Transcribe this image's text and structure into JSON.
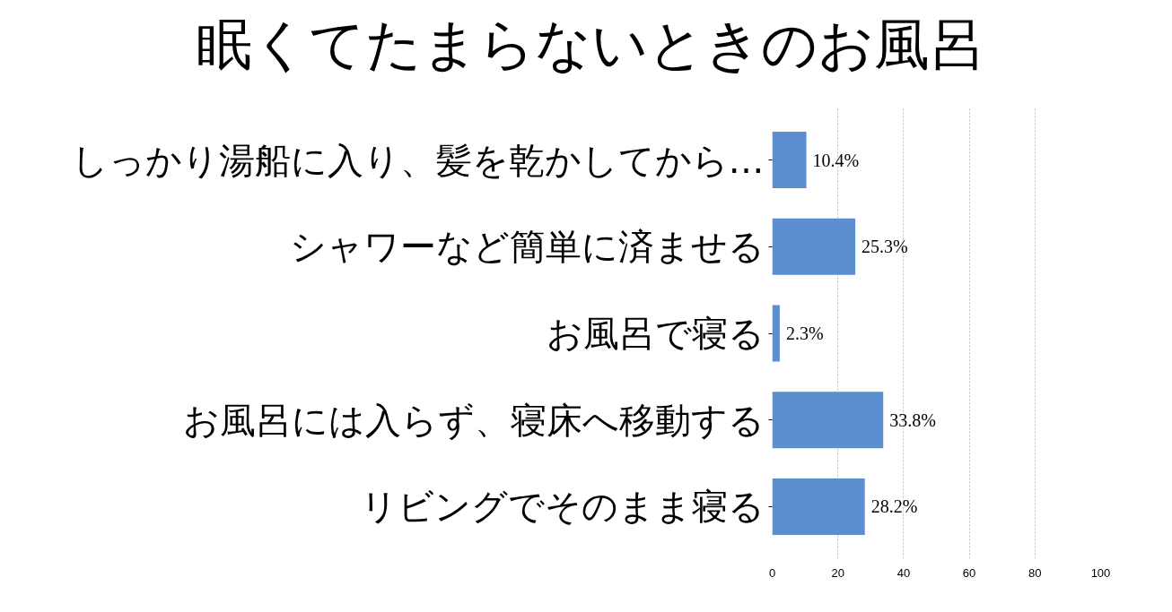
{
  "chart_data": {
    "type": "bar",
    "orientation": "horizontal",
    "title": "眠くてたまらないときのお風呂",
    "categories": [
      "しっかり湯船に入り、髪を乾かしてから…",
      "シャワーなど簡単に済ませる",
      "お風呂で寝る",
      "お風呂には入らず、寝床へ移動する",
      "リビングでそのまま寝る"
    ],
    "values": [
      10.4,
      25.3,
      2.3,
      33.8,
      28.2
    ],
    "value_labels": [
      "10.4%",
      "25.3%",
      "2.3%",
      "33.8%",
      "28.2%"
    ],
    "color": "#5b8fd0",
    "xlim": [
      0,
      100
    ],
    "xticks": [
      0,
      20,
      40,
      60,
      80,
      100
    ],
    "grid": "x"
  }
}
